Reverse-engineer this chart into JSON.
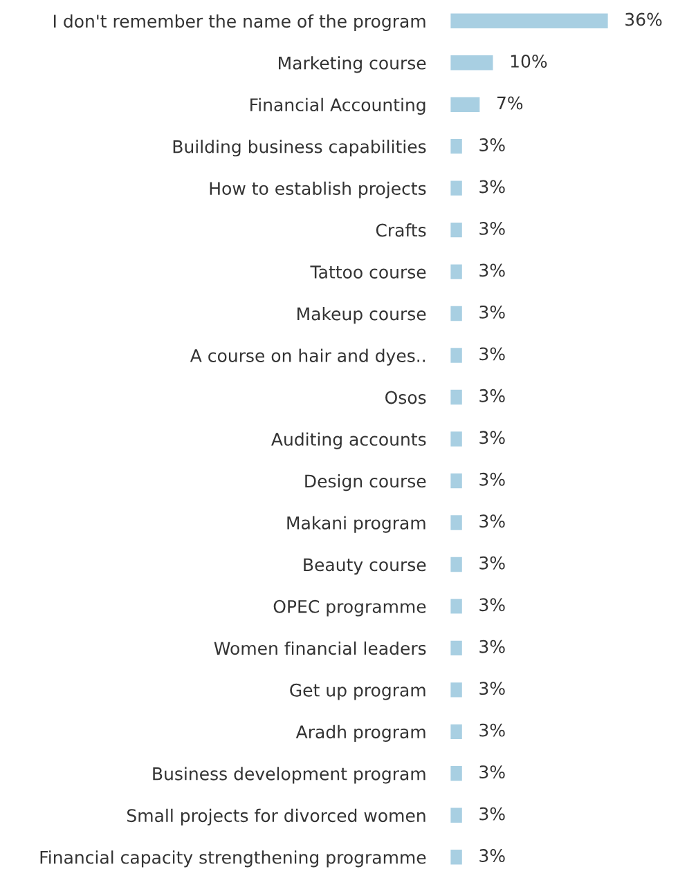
{
  "chart_data": {
    "type": "bar",
    "orientation": "horizontal",
    "categories": [
      "I don't remember the name of the program",
      "Marketing course",
      "Financial Accounting",
      "Building business capabilities",
      "How to establish projects",
      "Crafts",
      "Tattoo course",
      "Makeup course",
      "A course on hair and dyes..",
      "Osos",
      "Auditing accounts",
      "Design course",
      "Makani program",
      "Beauty course",
      "OPEC programme",
      "Women financial leaders",
      "Get up program",
      "Aradh program",
      "Business development program",
      "Small projects for divorced women",
      "Financial capacity strengthening programme"
    ],
    "values": [
      36,
      10,
      7,
      3,
      3,
      3,
      3,
      3,
      3,
      3,
      3,
      3,
      3,
      3,
      3,
      3,
      3,
      3,
      3,
      3,
      3
    ],
    "value_labels": [
      "36%",
      "10%",
      "7%",
      "3%",
      "3%",
      "3%",
      "3%",
      "3%",
      "3%",
      "3%",
      "3%",
      "3%",
      "3%",
      "3%",
      "3%",
      "3%",
      "3%",
      "3%",
      "3%",
      "3%",
      "3%"
    ],
    "color": "#a8cfe2",
    "grid": false,
    "legend": false
  }
}
